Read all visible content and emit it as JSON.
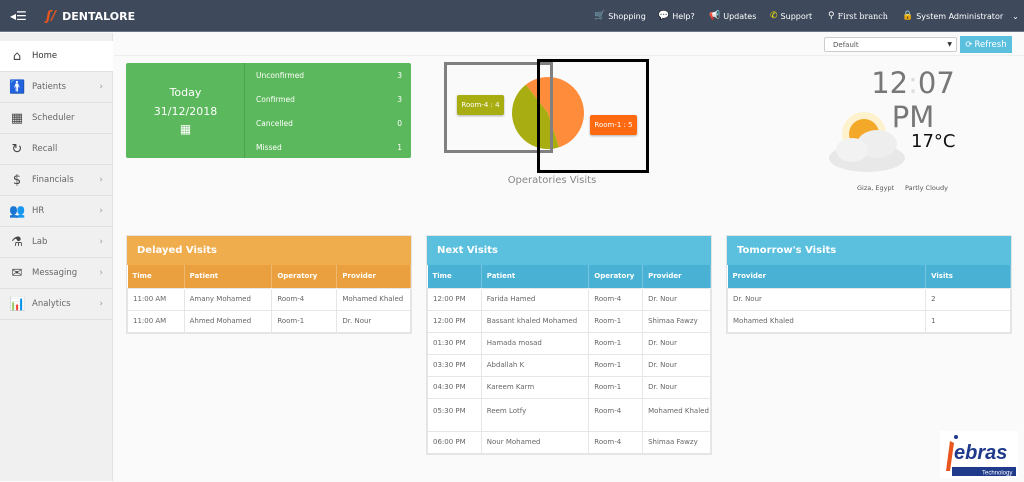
{
  "topbar": {
    "brand": "DENTALORE",
    "nav": [
      {
        "label": "Shopping",
        "icon": "cart-icon"
      },
      {
        "label": "Help?",
        "icon": "chat-icon"
      },
      {
        "label": "Updates",
        "icon": "megaphone-icon"
      },
      {
        "label": "Support",
        "icon": "phone-icon"
      },
      {
        "label": "First branch",
        "icon": "sitemap-icon"
      },
      {
        "label": "System Administrator",
        "icon": "lock-icon"
      }
    ]
  },
  "sidebar": {
    "items": [
      {
        "label": "Home"
      },
      {
        "label": "Patients"
      },
      {
        "label": "Scheduler"
      },
      {
        "label": "Recall"
      },
      {
        "label": "Financials"
      },
      {
        "label": "HR"
      },
      {
        "label": "Lab"
      },
      {
        "label": "Messaging"
      },
      {
        "label": "Analytics"
      }
    ]
  },
  "toolbar": {
    "select_value": "Default",
    "refresh_label": "Refresh"
  },
  "today": {
    "label": "Today",
    "date": "31/12/2018",
    "stats": [
      {
        "label": "Unconfirmed",
        "value": "3"
      },
      {
        "label": "Confirmed",
        "value": "3"
      },
      {
        "label": "Cancelled",
        "value": "0"
      },
      {
        "label": "Missed",
        "value": "1"
      }
    ]
  },
  "chart_data": {
    "type": "pie",
    "title": "Operatories Visits",
    "slices": [
      {
        "label": "Room-4 : 4",
        "name": "Room-4",
        "value": 4,
        "color": "#a8ad12"
      },
      {
        "label": "Room-1 : 5",
        "name": "Room-1",
        "value": 5,
        "color": "#ff8c3a"
      }
    ]
  },
  "clock": {
    "time": "12",
    "minutes": "07 PM"
  },
  "weather": {
    "temp": "17°C",
    "location": "Giza, Egypt",
    "condition": "Partly Cloudy"
  },
  "delayed": {
    "title": "Delayed Visits",
    "headers": [
      "Time",
      "Patient",
      "Operatory",
      "Provider"
    ],
    "rows": [
      [
        "11:00 AM",
        "Amany Mohamed",
        "Room-4",
        "Mohamed Khaled"
      ],
      [
        "11:00 AM",
        "Ahmed Mohamed",
        "Room-1",
        "Dr. Nour"
      ]
    ]
  },
  "next": {
    "title": "Next Visits",
    "headers": [
      "Time",
      "Patient",
      "Operatory",
      "Provider"
    ],
    "rows": [
      [
        "12:00 PM",
        "Farida Hamed",
        "Room-4",
        "Dr. Nour"
      ],
      [
        "12:00 PM",
        "Bassant khaled Mohamed",
        "Room-1",
        "Shimaa Fawzy"
      ],
      [
        "01:30 PM",
        "Hamada mosad",
        "Room-1",
        "Dr. Nour"
      ],
      [
        "03:30 PM",
        "Abdallah K",
        "Room-1",
        "Dr. Nour"
      ],
      [
        "04:30 PM",
        "Kareem Karm",
        "Room-1",
        "Dr. Nour"
      ],
      [
        "05:30 PM",
        "Reem Lotfy",
        "Room-4",
        "Mohamed Khaled"
      ],
      [
        "06:00 PM",
        "Nour Mohamed",
        "Room-4",
        "Shimaa Fawzy"
      ]
    ]
  },
  "tomorrow": {
    "title": "Tomorrow's Visits",
    "headers": [
      "Provider",
      "Visits"
    ],
    "rows": [
      [
        "Dr. Nour",
        "2"
      ],
      [
        "Mohamed Khaled",
        "1"
      ]
    ]
  },
  "logo": {
    "name": "Nebras",
    "tagline": "Technology"
  }
}
